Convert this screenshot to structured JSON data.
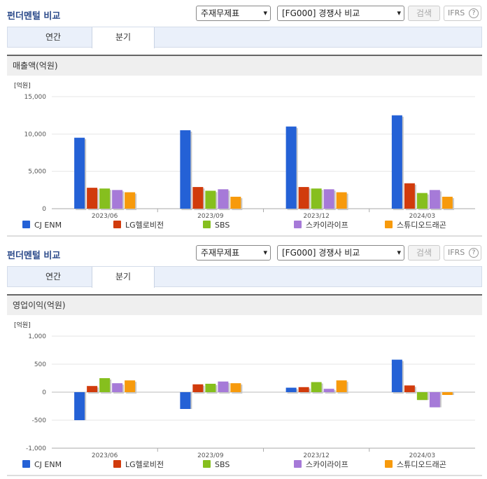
{
  "panels": [
    {
      "title": "펀더멘털 비교",
      "select1": "주재무제표",
      "select2": "[FG000] 경쟁사 비교",
      "search_label": "검색",
      "ifrs_label": "IFRS",
      "help_glyph": "?",
      "tabs": [
        "연간",
        "분기"
      ],
      "active_tab": 1,
      "section": "매출액(억원)"
    },
    {
      "title": "펀더멘털 비교",
      "select1": "주재무제표",
      "select2": "[FG000] 경쟁사 비교",
      "search_label": "검색",
      "ifrs_label": "IFRS",
      "help_glyph": "?",
      "tabs": [
        "연간",
        "분기"
      ],
      "active_tab": 1,
      "section": "영업이익(억원)"
    }
  ],
  "colors": [
    "#2461d6",
    "#d13b0c",
    "#86bf1e",
    "#a67ad8",
    "#f79a0c"
  ],
  "chart_data": [
    {
      "type": "bar",
      "title": "매출액(억원)",
      "unit_label": "[억원]",
      "categories": [
        "2023/06",
        "2023/09",
        "2023/12",
        "2024/03"
      ],
      "ylim": [
        0,
        15000
      ],
      "yticks": [
        0,
        5000,
        10000,
        15000
      ],
      "ytick_labels": [
        "0",
        "5,000",
        "10,000",
        "15,000"
      ],
      "legend_position": "bottom",
      "series": [
        {
          "name": "CJ ENM",
          "values": [
            9500,
            10500,
            11000,
            12500
          ]
        },
        {
          "name": "LG헬로비전",
          "values": [
            2800,
            2900,
            2900,
            3400
          ]
        },
        {
          "name": "SBS",
          "values": [
            2700,
            2400,
            2700,
            2100
          ]
        },
        {
          "name": "스카이라이프",
          "values": [
            2500,
            2600,
            2600,
            2500
          ]
        },
        {
          "name": "스튜디오드래곤",
          "values": [
            2200,
            1600,
            2200,
            1600
          ]
        }
      ]
    },
    {
      "type": "bar",
      "title": "영업이익(억원)",
      "unit_label": "[억원]",
      "categories": [
        "2023/06",
        "2023/09",
        "2023/12",
        "2024/03"
      ],
      "ylim": [
        -1000,
        1000
      ],
      "yticks": [
        -1000,
        -500,
        0,
        500,
        1000
      ],
      "ytick_labels": [
        "-1,000",
        "-500",
        "0",
        "500",
        "1,000"
      ],
      "legend_position": "bottom",
      "series": [
        {
          "name": "CJ ENM",
          "values": [
            -500,
            -300,
            80,
            580
          ]
        },
        {
          "name": "LG헬로비전",
          "values": [
            110,
            140,
            90,
            120
          ]
        },
        {
          "name": "SBS",
          "values": [
            250,
            150,
            180,
            -140
          ]
        },
        {
          "name": "스카이라이프",
          "values": [
            160,
            190,
            60,
            -270
          ]
        },
        {
          "name": "스튜디오드래곤",
          "values": [
            210,
            160,
            210,
            -50
          ]
        }
      ]
    }
  ]
}
